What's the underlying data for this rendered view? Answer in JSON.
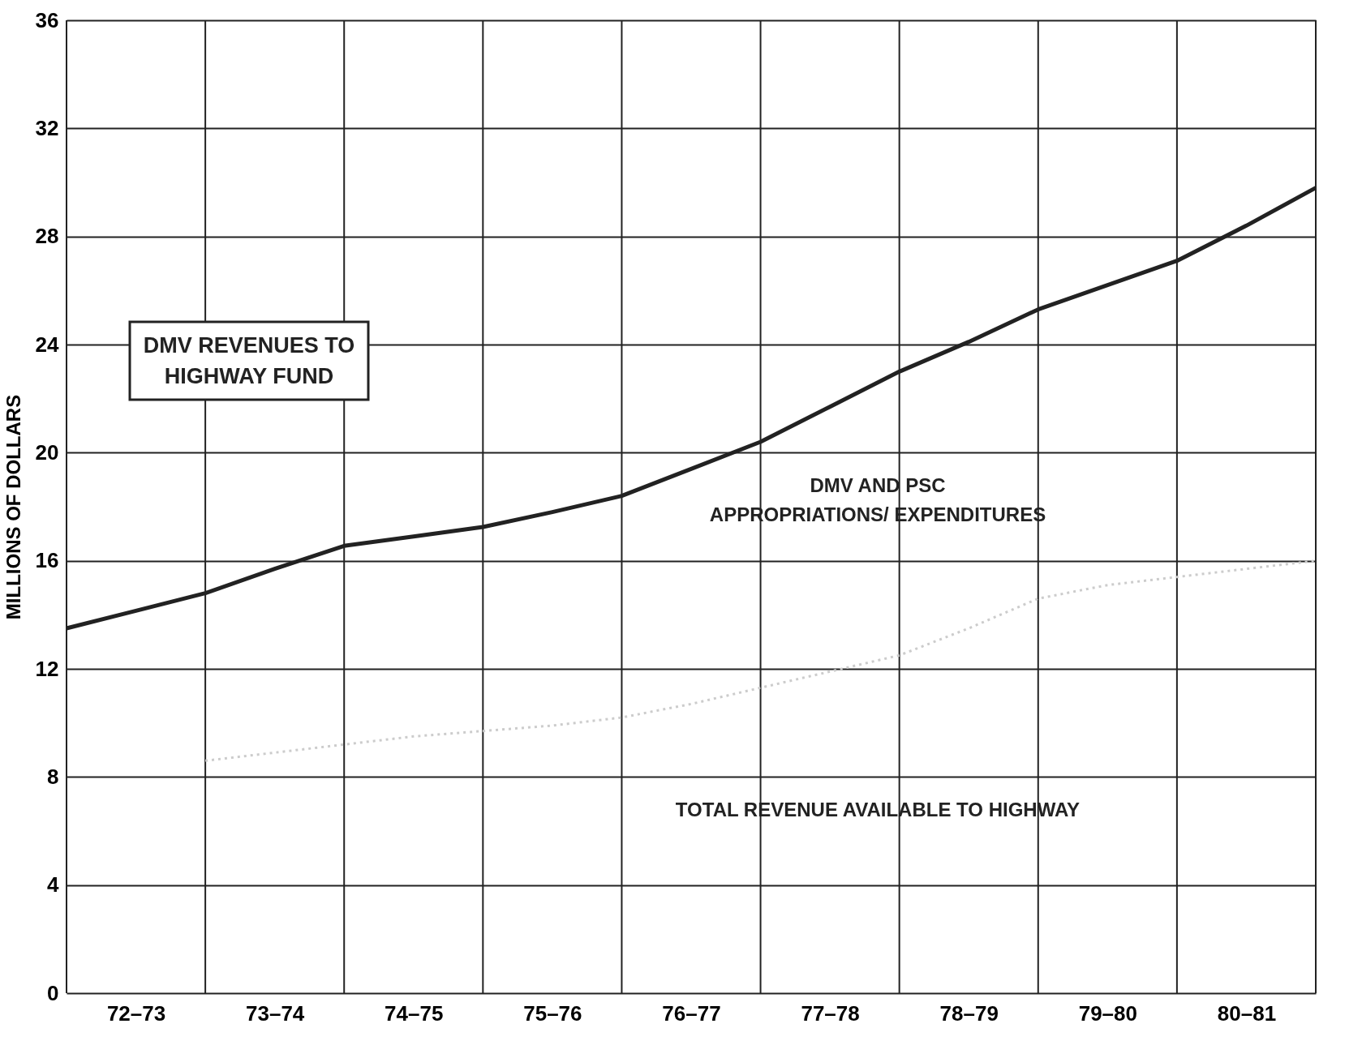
{
  "chart_data": {
    "type": "line",
    "ylabel": "MILLIONS OF DOLLARS",
    "categories": [
      null,
      "72–73",
      null,
      "73–74",
      null,
      "74–75",
      null,
      "75–76",
      null,
      "76–77",
      null,
      "77–78",
      null,
      "78–79",
      null,
      "79–80",
      null,
      "80–81",
      null
    ],
    "ylim": [
      0,
      36
    ],
    "yticks": [
      0,
      4,
      8,
      12,
      16,
      20,
      24,
      28,
      32,
      36
    ],
    "grid": true,
    "series": [
      {
        "name": "DMV REVENUES TO HIGHWAY FUND",
        "color": "#222222",
        "values": [
          13.5,
          14.15,
          14.8,
          15.7,
          16.55,
          16.9,
          17.25,
          17.8,
          18.4,
          19.4,
          20.4,
          21.7,
          23.0,
          24.1,
          25.3,
          26.2,
          27.1,
          28.4,
          29.8
        ]
      },
      {
        "color": "#cccccc",
        "line_style": "dotted",
        "values": [
          null,
          null,
          8.6,
          8.9,
          9.2,
          9.5,
          9.7,
          9.9,
          10.2,
          10.7,
          11.3,
          11.9,
          12.5,
          13.5,
          14.6,
          15.1,
          15.4,
          15.7,
          16.0
        ]
      }
    ],
    "annotations": [
      "DMV AND PSC APPROPRIATIONS/ EXPENDITURES",
      "TOTAL REVENUE AVAILABLE TO HIGHWAY"
    ]
  }
}
